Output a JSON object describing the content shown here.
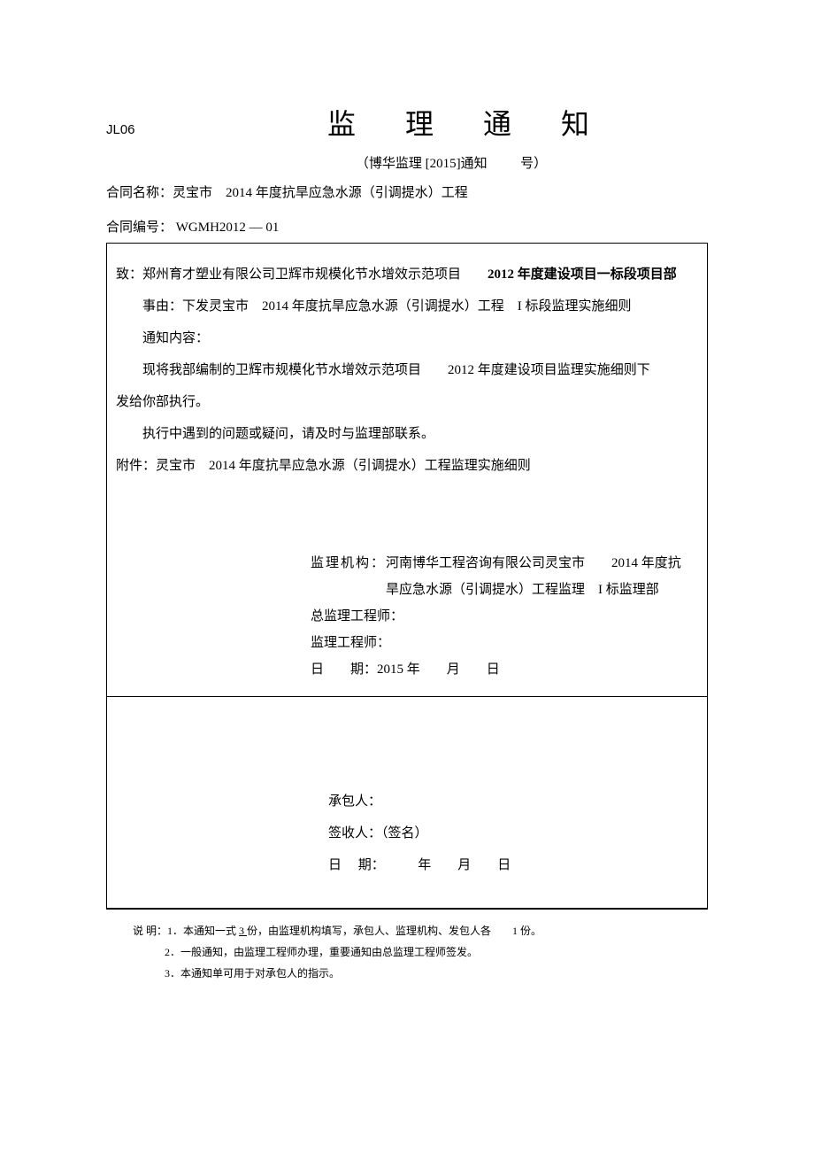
{
  "header": {
    "form_code": "JL06",
    "title": "监 理 通 知",
    "subtitle_prefix": "（博华监理 [2015]通知",
    "subtitle_suffix": "号）"
  },
  "contract": {
    "name_label": "合同名称：",
    "name_value": "灵宝市　2014 年度抗旱应急水源（引调提水）工程",
    "num_label": "合同编号：",
    "num_value": " WGMH2012 — 01"
  },
  "body": {
    "to_label": "致：",
    "to_value_1": "郑州育才塑业有限公司卫辉市规模化节水增效示范项目",
    "to_value_2": "2012 年度建设项目一标段项目部",
    "reason_label": "事由：",
    "reason_value": "下发灵宝市　2014 年度抗旱应急水源（引调提水）工程　I 标段监理实施细则",
    "content_label": "通知内容：",
    "content_line1_a": "现将我部编制的卫辉市规模化节水增效示范项目",
    "content_line1_b": "2012 年度建设项目监理实施细则下",
    "content_line2": "发给你部执行。",
    "content_line3": "执行中遇到的问题或疑问，请及时与监理部联系。",
    "attach_label": "附件：",
    "attach_value": "灵宝市　2014 年度抗旱应急水源（引调提水）工程监理实施细则"
  },
  "sig1": {
    "org_label": "监理机构：",
    "org_value_1": "河南博华工程咨询有限公司灵宝市　　2014 年度抗",
    "org_value_2": "旱应急水源（引调提水）工程监理　I 标监理部",
    "chief_label": "总监理工程师：",
    "eng_label": "监理工程师：",
    "date_label": "日　　期：",
    "date_value": "2015 年　　月　　日"
  },
  "sig2": {
    "contractor_label": "承包人：",
    "receiver_label": "签收人：（签名）",
    "date_label": "日　 期：　　　年　　月　　日"
  },
  "notes": {
    "label": "说 明：",
    "n1_a": "1．本通知一式 ",
    "n1_u": " 3 ",
    "n1_b": " 份，由监理机构填写，承包人、监理机构、发包人各　　1 份。",
    "n2": "2．一般通知，由监理工程师办理，重要通知由总监理工程师签发。",
    "n3": "3．本通知单可用于对承包人的指示。"
  },
  "style": {
    "background_color": "#ffffff",
    "text_color": "#000000",
    "border_color": "#000000",
    "title_fontsize": 32,
    "body_fontsize": 15,
    "notes_fontsize": 12
  }
}
